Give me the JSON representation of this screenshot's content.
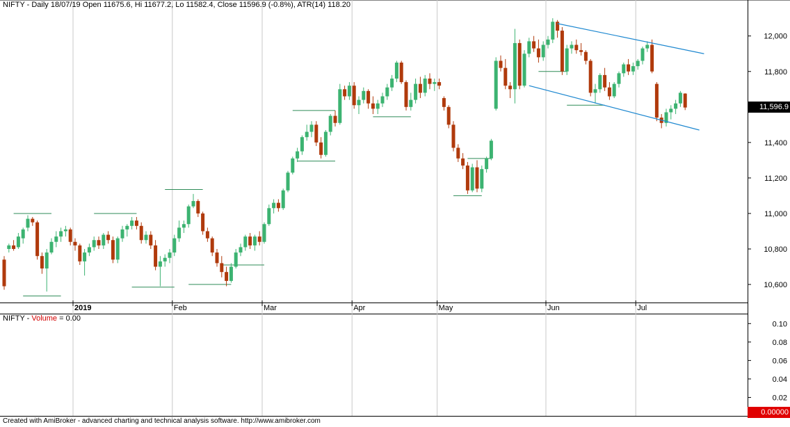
{
  "header": {
    "title": "NIFTY - Daily 18/07/19 Open 11675.6, Hi 11677.2, Lo 11582.4, Close 11596.9 (-0.8%), ATR(14) 118.20"
  },
  "volume_panel": {
    "symbol": "NIFTY - ",
    "name": "Volume",
    "value_text": " = 0.00",
    "last_value": "0.00000",
    "ticks": [
      {
        "value": 0.1,
        "label": "0.10"
      },
      {
        "value": 0.08,
        "label": "0.08"
      },
      {
        "value": 0.06,
        "label": "0.06"
      },
      {
        "value": 0.04,
        "label": "0.04"
      },
      {
        "value": 0.02,
        "label": "0.02"
      }
    ],
    "ylim": [
      0,
      0.11
    ]
  },
  "footer": {
    "text": "Created with AmiBroker - advanced charting and technical analysis software. http://www.amibroker.com"
  },
  "colors": {
    "up": "#3cb371",
    "down": "#b03a0c",
    "trendline": "#1e88d0",
    "support": "#2e8b57",
    "grid": "#c8c8c8"
  },
  "chart_data": {
    "type": "candlestick",
    "ylim": [
      10510,
      12140
    ],
    "last_price_label": "11,596.9",
    "y_ticks": [
      {
        "value": 10600,
        "label": "10,600"
      },
      {
        "value": 10800,
        "label": "10,800"
      },
      {
        "value": 11000,
        "label": "11,000"
      },
      {
        "value": 11200,
        "label": "11,200"
      },
      {
        "value": 11400,
        "label": "11,400"
      },
      {
        "value": 11600,
        "label": "11,600"
      },
      {
        "value": 11800,
        "label": "11,800"
      },
      {
        "value": 12000,
        "label": "12,000"
      }
    ],
    "month_labels": [
      {
        "index": 15,
        "label": "2019"
      },
      {
        "index": 36,
        "label": "Feb"
      },
      {
        "index": 55,
        "label": "Mar"
      },
      {
        "index": 74,
        "label": "Apr"
      },
      {
        "index": 92,
        "label": "May"
      },
      {
        "index": 115,
        "label": "Jun"
      },
      {
        "index": 134,
        "label": "Jul"
      }
    ],
    "candles": [
      [
        10740,
        10760,
        10570,
        10590
      ],
      [
        10800,
        10830,
        10780,
        10820
      ],
      [
        10820,
        10850,
        10790,
        10800
      ],
      [
        10810,
        10890,
        10800,
        10870
      ],
      [
        10860,
        10920,
        10830,
        10910
      ],
      [
        10920,
        10990,
        10900,
        10970
      ],
      [
        10970,
        10980,
        10930,
        10950
      ],
      [
        10950,
        10960,
        10740,
        10760
      ],
      [
        10760,
        10780,
        10660,
        10690
      ],
      [
        10690,
        10800,
        10560,
        10780
      ],
      [
        10780,
        10860,
        10770,
        10840
      ],
      [
        10840,
        10900,
        10810,
        10870
      ],
      [
        10870,
        10920,
        10840,
        10900
      ],
      [
        10900,
        10930,
        10870,
        10910
      ],
      [
        10910,
        10920,
        10820,
        10840
      ],
      [
        10840,
        10860,
        10790,
        10820
      ],
      [
        10820,
        10830,
        10710,
        10730
      ],
      [
        10730,
        10800,
        10650,
        10780
      ],
      [
        10780,
        10830,
        10760,
        10810
      ],
      [
        10810,
        10870,
        10790,
        10850
      ],
      [
        10850,
        10870,
        10800,
        10820
      ],
      [
        10820,
        10890,
        10800,
        10880
      ],
      [
        10880,
        10900,
        10830,
        10850
      ],
      [
        10850,
        10870,
        10720,
        10740
      ],
      [
        10740,
        10870,
        10720,
        10860
      ],
      [
        10860,
        10930,
        10840,
        10910
      ],
      [
        10910,
        10940,
        10870,
        10930
      ],
      [
        10930,
        10980,
        10910,
        10960
      ],
      [
        10960,
        10980,
        10910,
        10930
      ],
      [
        10930,
        10950,
        10830,
        10850
      ],
      [
        10850,
        10900,
        10830,
        10880
      ],
      [
        10880,
        10900,
        10800,
        10820
      ],
      [
        10820,
        10850,
        10680,
        10700
      ],
      [
        10700,
        10760,
        10590,
        10730
      ],
      [
        10730,
        10770,
        10700,
        10750
      ],
      [
        10750,
        10800,
        10720,
        10780
      ],
      [
        10780,
        10880,
        10760,
        10860
      ],
      [
        10860,
        10960,
        10840,
        10920
      ],
      [
        10920,
        10960,
        10890,
        10940
      ],
      [
        10940,
        11050,
        10920,
        11040
      ],
      [
        11040,
        11110,
        11030,
        11070
      ],
      [
        11070,
        11080,
        10980,
        11000
      ],
      [
        11000,
        11010,
        10880,
        10900
      ],
      [
        10900,
        10920,
        10840,
        10860
      ],
      [
        10860,
        10870,
        10760,
        10780
      ],
      [
        10780,
        10800,
        10700,
        10720
      ],
      [
        10720,
        10760,
        10640,
        10670
      ],
      [
        10670,
        10700,
        10590,
        10620
      ],
      [
        10620,
        10720,
        10610,
        10700
      ],
      [
        10700,
        10800,
        10690,
        10780
      ],
      [
        10780,
        10830,
        10760,
        10810
      ],
      [
        10810,
        10880,
        10790,
        10870
      ],
      [
        10870,
        10890,
        10800,
        10820
      ],
      [
        10820,
        10880,
        10790,
        10870
      ],
      [
        10870,
        10900,
        10820,
        10840
      ],
      [
        10840,
        10950,
        10830,
        10940
      ],
      [
        10940,
        11050,
        10930,
        11030
      ],
      [
        11030,
        11080,
        11000,
        11060
      ],
      [
        11060,
        11080,
        11010,
        11030
      ],
      [
        11030,
        11140,
        11020,
        11130
      ],
      [
        11130,
        11240,
        11120,
        11230
      ],
      [
        11230,
        11320,
        11220,
        11310
      ],
      [
        11310,
        11370,
        11290,
        11350
      ],
      [
        11350,
        11440,
        11330,
        11430
      ],
      [
        11430,
        11500,
        11410,
        11460
      ],
      [
        11460,
        11520,
        11430,
        11500
      ],
      [
        11500,
        11520,
        11380,
        11400
      ],
      [
        11400,
        11430,
        11310,
        11330
      ],
      [
        11330,
        11470,
        11320,
        11460
      ],
      [
        11460,
        11560,
        11440,
        11550
      ],
      [
        11550,
        11580,
        11490,
        11510
      ],
      [
        11510,
        11730,
        11500,
        11700
      ],
      [
        11700,
        11720,
        11640,
        11660
      ],
      [
        11660,
        11740,
        11640,
        11720
      ],
      [
        11720,
        11740,
        11590,
        11610
      ],
      [
        11610,
        11660,
        11560,
        11640
      ],
      [
        11640,
        11710,
        11620,
        11690
      ],
      [
        11690,
        11700,
        11590,
        11620
      ],
      [
        11620,
        11660,
        11560,
        11590
      ],
      [
        11590,
        11640,
        11560,
        11620
      ],
      [
        11620,
        11680,
        11600,
        11660
      ],
      [
        11660,
        11730,
        11640,
        11710
      ],
      [
        11710,
        11780,
        11690,
        11760
      ],
      [
        11760,
        11860,
        11740,
        11850
      ],
      [
        11850,
        11860,
        11730,
        11740
      ],
      [
        11740,
        11750,
        11580,
        11600
      ],
      [
        11600,
        11680,
        11580,
        11640
      ],
      [
        11640,
        11760,
        11620,
        11730
      ],
      [
        11730,
        11770,
        11650,
        11680
      ],
      [
        11680,
        11780,
        11660,
        11760
      ],
      [
        11760,
        11790,
        11700,
        11730
      ],
      [
        11730,
        11760,
        11690,
        11740
      ],
      [
        11740,
        11760,
        11700,
        11720
      ],
      [
        11650,
        11660,
        11580,
        11600
      ],
      [
        11600,
        11610,
        11480,
        11500
      ],
      [
        11500,
        11520,
        11350,
        11370
      ],
      [
        11370,
        11390,
        11290,
        11310
      ],
      [
        11310,
        11340,
        11250,
        11270
      ],
      [
        11270,
        11290,
        11110,
        11130
      ],
      [
        11130,
        11280,
        11120,
        11260
      ],
      [
        11260,
        11300,
        11120,
        11140
      ],
      [
        11140,
        11270,
        11120,
        11250
      ],
      [
        11250,
        11320,
        11230,
        11310
      ],
      [
        11310,
        11420,
        11300,
        11410
      ],
      [
        11590,
        11880,
        11580,
        11860
      ],
      [
        11860,
        11890,
        11800,
        11820
      ],
      [
        11820,
        11870,
        11700,
        11720
      ],
      [
        11720,
        11740,
        11650,
        11700
      ],
      [
        11700,
        12040,
        11620,
        11960
      ],
      [
        11960,
        11980,
        11700,
        11720
      ],
      [
        11720,
        11920,
        11710,
        11900
      ],
      [
        11900,
        11990,
        11880,
        11970
      ],
      [
        11970,
        12000,
        11910,
        11930
      ],
      [
        11930,
        11980,
        11850,
        11880
      ],
      [
        11880,
        11970,
        11860,
        11950
      ],
      [
        11950,
        12000,
        11930,
        11980
      ],
      [
        11980,
        12100,
        11960,
        12080
      ],
      [
        12080,
        12090,
        11990,
        12030
      ],
      [
        12030,
        12050,
        11780,
        11800
      ],
      [
        11800,
        11950,
        11780,
        11930
      ],
      [
        11930,
        11970,
        11900,
        11950
      ],
      [
        11950,
        11980,
        11900,
        11920
      ],
      [
        11920,
        11960,
        11890,
        11910
      ],
      [
        11910,
        11920,
        11840,
        11860
      ],
      [
        11860,
        11870,
        11660,
        11680
      ],
      [
        11680,
        11730,
        11620,
        11700
      ],
      [
        11700,
        11790,
        11680,
        11780
      ],
      [
        11780,
        11820,
        11690,
        11710
      ],
      [
        11710,
        11740,
        11640,
        11660
      ],
      [
        11660,
        11740,
        11650,
        11730
      ],
      [
        11730,
        11800,
        11710,
        11790
      ],
      [
        11790,
        11850,
        11770,
        11840
      ],
      [
        11840,
        11870,
        11780,
        11800
      ],
      [
        11800,
        11850,
        11780,
        11830
      ],
      [
        11830,
        11870,
        11810,
        11860
      ],
      [
        11860,
        11940,
        11840,
        11930
      ],
      [
        11930,
        11970,
        11910,
        11950
      ],
      [
        11950,
        11980,
        11790,
        11800
      ],
      [
        11730,
        11740,
        11520,
        11540
      ],
      [
        11540,
        11560,
        11480,
        11510
      ],
      [
        11510,
        11590,
        11490,
        11570
      ],
      [
        11570,
        11610,
        11530,
        11590
      ],
      [
        11590,
        11640,
        11560,
        11620
      ],
      [
        11620,
        11690,
        11600,
        11680
      ],
      [
        11675.6,
        11677.2,
        11582.4,
        11596.9
      ]
    ],
    "trendlines": [
      {
        "from": [
          117,
          12070
        ],
        "to": [
          148,
          11900
        ]
      },
      {
        "from": [
          111,
          11720
        ],
        "to": [
          147,
          11470
        ]
      }
    ],
    "support_segments": [
      {
        "from": 2,
        "to": 10,
        "level": 11000
      },
      {
        "from": 4,
        "to": 12,
        "level": 10535
      },
      {
        "from": 19,
        "to": 28,
        "level": 11000
      },
      {
        "from": 27,
        "to": 36,
        "level": 10585
      },
      {
        "from": 34,
        "to": 42,
        "level": 11135
      },
      {
        "from": 39,
        "to": 48,
        "level": 10600
      },
      {
        "from": 46,
        "to": 55,
        "level": 10710
      },
      {
        "from": 61,
        "to": 70,
        "level": 11580
      },
      {
        "from": 62,
        "to": 70,
        "level": 11295
      },
      {
        "from": 78,
        "to": 86,
        "level": 11545
      },
      {
        "from": 95,
        "to": 101,
        "level": 11100
      },
      {
        "from": 98,
        "to": 103,
        "level": 11310
      },
      {
        "from": 113,
        "to": 119,
        "level": 11800
      },
      {
        "from": 119,
        "to": 127,
        "level": 11610
      }
    ]
  }
}
